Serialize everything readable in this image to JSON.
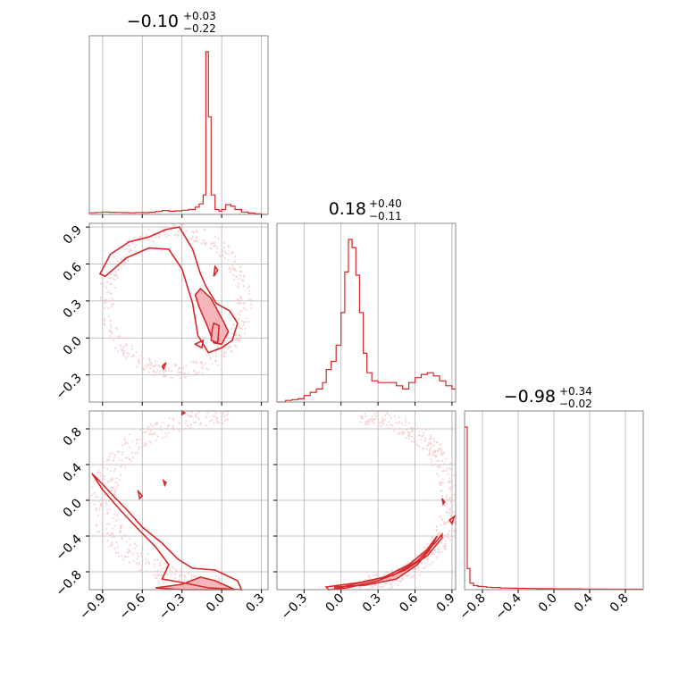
{
  "chart_data": {
    "type": "corner",
    "grid": true,
    "colors": {
      "line": "#d62728",
      "fill": "#f4b6bb",
      "scatter": "#f7c8cc",
      "grid": "#b0b0b0"
    },
    "titles": [
      {
        "median": "−0.10",
        "plus": "+0.03",
        "minus": "−0.22"
      },
      {
        "median": "0.18",
        "plus": "+0.40",
        "minus": "−0.11"
      },
      {
        "median": "−0.98",
        "plus": "+0.34",
        "minus": "−0.02"
      }
    ],
    "params": [
      {
        "range": [
          -1.0,
          0.35
        ],
        "ticks": [
          -0.9,
          -0.6,
          -0.3,
          0.0,
          0.3
        ],
        "tick_labels": [
          "−0.9",
          "−0.6",
          "−0.3",
          "0.0",
          "0.3"
        ]
      },
      {
        "range": [
          -0.52,
          0.93
        ],
        "ticks": [
          -0.3,
          0.0,
          0.3,
          0.6,
          0.9
        ],
        "tick_labels": [
          "−0.3",
          "0.0",
          "0.3",
          "0.6",
          "0.9"
        ]
      },
      {
        "range": [
          -1.0,
          1.0
        ],
        "ticks": [
          -0.8,
          -0.4,
          0.0,
          0.4,
          0.8
        ],
        "tick_labels": [
          "−0.8",
          "−0.4",
          "0.0",
          "0.4",
          "0.8"
        ]
      }
    ],
    "histograms": [
      {
        "param": 0,
        "bins": [
          [
            -1.0,
            0.01
          ],
          [
            -0.95,
            0.012
          ],
          [
            -0.9,
            0.015
          ],
          [
            -0.85,
            0.013
          ],
          [
            -0.8,
            0.012
          ],
          [
            -0.75,
            0.011
          ],
          [
            -0.7,
            0.01
          ],
          [
            -0.65,
            0.012
          ],
          [
            -0.6,
            0.011
          ],
          [
            -0.55,
            0.013
          ],
          [
            -0.5,
            0.018
          ],
          [
            -0.45,
            0.024
          ],
          [
            -0.4,
            0.02
          ],
          [
            -0.35,
            0.022
          ],
          [
            -0.3,
            0.026
          ],
          [
            -0.25,
            0.03
          ],
          [
            -0.2,
            0.045
          ],
          [
            -0.17,
            0.065
          ],
          [
            -0.14,
            0.12
          ],
          [
            -0.12,
            1.0
          ],
          [
            -0.1,
            0.6
          ],
          [
            -0.08,
            0.12
          ],
          [
            -0.05,
            0.03
          ],
          [
            -0.02,
            0.02
          ],
          [
            0.0,
            0.03
          ],
          [
            0.03,
            0.06
          ],
          [
            0.07,
            0.05
          ],
          [
            0.1,
            0.03
          ],
          [
            0.15,
            0.015
          ],
          [
            0.2,
            0.008
          ],
          [
            0.25,
            0.004
          ],
          [
            0.3,
            0.0
          ]
        ]
      },
      {
        "param": 1,
        "bins": [
          [
            -0.52,
            0.0
          ],
          [
            -0.45,
            0.01
          ],
          [
            -0.4,
            0.015
          ],
          [
            -0.35,
            0.02
          ],
          [
            -0.3,
            0.04
          ],
          [
            -0.25,
            0.06
          ],
          [
            -0.2,
            0.08
          ],
          [
            -0.15,
            0.12
          ],
          [
            -0.12,
            0.2
          ],
          [
            -0.08,
            0.25
          ],
          [
            -0.04,
            0.35
          ],
          [
            0.0,
            0.55
          ],
          [
            0.03,
            0.8
          ],
          [
            0.06,
            1.0
          ],
          [
            0.09,
            0.95
          ],
          [
            0.12,
            0.78
          ],
          [
            0.15,
            0.55
          ],
          [
            0.18,
            0.3
          ],
          [
            0.21,
            0.18
          ],
          [
            0.25,
            0.13
          ],
          [
            0.3,
            0.12
          ],
          [
            0.35,
            0.12
          ],
          [
            0.4,
            0.12
          ],
          [
            0.45,
            0.1
          ],
          [
            0.5,
            0.08
          ],
          [
            0.55,
            0.12
          ],
          [
            0.6,
            0.15
          ],
          [
            0.65,
            0.17
          ],
          [
            0.7,
            0.18
          ],
          [
            0.75,
            0.16
          ],
          [
            0.8,
            0.13
          ],
          [
            0.85,
            0.1
          ],
          [
            0.9,
            0.08
          ]
        ]
      },
      {
        "param": 2,
        "bins": [
          [
            -1.0,
            1.0
          ],
          [
            -0.97,
            0.13
          ],
          [
            -0.94,
            0.04
          ],
          [
            -0.9,
            0.025
          ],
          [
            -0.85,
            0.02
          ],
          [
            -0.8,
            0.018
          ],
          [
            -0.75,
            0.015
          ],
          [
            -0.7,
            0.013
          ],
          [
            -0.6,
            0.01
          ],
          [
            -0.5,
            0.009
          ],
          [
            -0.4,
            0.008
          ],
          [
            -0.3,
            0.007
          ],
          [
            -0.2,
            0.006
          ],
          [
            -0.1,
            0.006
          ],
          [
            0.0,
            0.005
          ],
          [
            0.1,
            0.005
          ],
          [
            0.2,
            0.005
          ],
          [
            0.3,
            0.004
          ],
          [
            0.4,
            0.004
          ],
          [
            0.5,
            0.004
          ],
          [
            0.6,
            0.003
          ],
          [
            0.7,
            0.003
          ],
          [
            0.8,
            0.003
          ],
          [
            0.9,
            0.003
          ]
        ]
      }
    ],
    "pairs": [
      {
        "x_param": 0,
        "y_param": 1,
        "filled_regions": [
          [
            [
              -0.16,
              0.4
            ],
            [
              -0.08,
              0.32
            ],
            [
              -0.03,
              0.22
            ],
            [
              0.02,
              0.12
            ],
            [
              0.05,
              0.05
            ],
            [
              0.0,
              -0.05
            ],
            [
              -0.06,
              -0.04
            ],
            [
              -0.11,
              0.1
            ],
            [
              -0.17,
              0.25
            ],
            [
              -0.2,
              0.35
            ]
          ],
          [
            [
              -0.06,
              0.12
            ],
            [
              -0.02,
              0.1
            ],
            [
              -0.03,
              -0.04
            ],
            [
              -0.08,
              -0.02
            ],
            [
              -0.07,
              0.08
            ]
          ]
        ],
        "outer_contours": [
          [
            [
              -0.92,
              0.52
            ],
            [
              -0.84,
              0.68
            ],
            [
              -0.7,
              0.78
            ],
            [
              -0.55,
              0.82
            ],
            [
              -0.42,
              0.88
            ],
            [
              -0.32,
              0.9
            ],
            [
              -0.22,
              0.72
            ],
            [
              -0.16,
              0.52
            ],
            [
              -0.12,
              0.42
            ],
            [
              -0.04,
              0.28
            ],
            [
              0.06,
              0.22
            ],
            [
              0.12,
              0.12
            ],
            [
              0.08,
              -0.02
            ],
            [
              0.0,
              -0.08
            ],
            [
              -0.1,
              -0.12
            ],
            [
              -0.18,
              0.02
            ],
            [
              -0.22,
              0.28
            ],
            [
              -0.3,
              0.56
            ],
            [
              -0.4,
              0.72
            ],
            [
              -0.55,
              0.73
            ],
            [
              -0.72,
              0.65
            ],
            [
              -0.88,
              0.5
            ]
          ],
          [
            [
              -0.2,
              -0.05
            ],
            [
              -0.14,
              -0.02
            ],
            [
              -0.15,
              -0.08
            ]
          ],
          [
            [
              -0.45,
              -0.23
            ],
            [
              -0.42,
              -0.2
            ],
            [
              -0.44,
              -0.25
            ]
          ],
          [
            [
              -0.06,
              0.5
            ],
            [
              -0.03,
              0.55
            ],
            [
              -0.05,
              0.58
            ]
          ]
        ],
        "scatter_pattern": "ring"
      },
      {
        "x_param": 0,
        "y_param": 2,
        "filled_regions": [
          [
            [
              -0.5,
              -0.98
            ],
            [
              -0.3,
              -0.94
            ],
            [
              -0.16,
              -0.86
            ],
            [
              -0.05,
              -0.9
            ],
            [
              0.1,
              -1.0
            ],
            [
              -0.3,
              -1.0
            ]
          ]
        ],
        "outer_contours": [
          [
            [
              -0.98,
              0.3
            ],
            [
              -0.9,
              0.18
            ],
            [
              -0.82,
              0.05
            ],
            [
              -0.72,
              -0.1
            ],
            [
              -0.6,
              -0.3
            ],
            [
              -0.45,
              -0.48
            ],
            [
              -0.33,
              -0.66
            ],
            [
              -0.22,
              -0.76
            ],
            [
              -0.05,
              -0.78
            ],
            [
              0.12,
              -0.9
            ],
            [
              0.15,
              -1.0
            ],
            [
              -0.1,
              -0.98
            ],
            [
              -0.3,
              -0.92
            ],
            [
              -0.45,
              -0.88
            ],
            [
              -0.4,
              -0.72
            ],
            [
              -0.5,
              -0.52
            ],
            [
              -0.62,
              -0.34
            ],
            [
              -0.76,
              -0.12
            ],
            [
              -0.9,
              0.12
            ]
          ],
          [
            [
              -0.44,
              0.22
            ],
            [
              -0.42,
              0.2
            ],
            [
              -0.43,
              0.17
            ]
          ],
          [
            [
              -0.63,
              0.1
            ],
            [
              -0.6,
              0.05
            ],
            [
              -0.62,
              0.02
            ]
          ],
          [
            [
              -0.3,
              1.0
            ],
            [
              -0.28,
              0.98
            ],
            [
              -0.3,
              0.96
            ]
          ]
        ],
        "scatter_pattern": "arc"
      },
      {
        "x_param": 1,
        "y_param": 2,
        "filled_regions": [
          [
            [
              -0.05,
              -0.97
            ],
            [
              0.2,
              -0.95
            ],
            [
              0.45,
              -0.88
            ],
            [
              0.62,
              -0.72
            ],
            [
              0.72,
              -0.55
            ],
            [
              0.78,
              -0.4
            ],
            [
              0.7,
              -0.55
            ],
            [
              0.55,
              -0.72
            ],
            [
              0.35,
              -0.86
            ],
            [
              0.1,
              -0.94
            ],
            [
              -0.05,
              -0.99
            ]
          ]
        ],
        "outer_contours": [
          [
            [
              -0.12,
              -0.97
            ],
            [
              0.15,
              -0.92
            ],
            [
              0.42,
              -0.84
            ],
            [
              0.62,
              -0.68
            ],
            [
              0.76,
              -0.48
            ],
            [
              0.82,
              -0.38
            ],
            [
              0.82,
              -0.42
            ],
            [
              0.7,
              -0.62
            ],
            [
              0.52,
              -0.78
            ],
            [
              0.3,
              -0.9
            ],
            [
              0.05,
              -0.98
            ],
            [
              -0.1,
              -1.0
            ]
          ],
          [
            [
              0.88,
              -0.22
            ],
            [
              0.92,
              -0.18
            ],
            [
              0.9,
              -0.26
            ]
          ],
          [
            [
              0.82,
              0.02
            ],
            [
              0.84,
              -0.02
            ],
            [
              0.83,
              -0.04
            ]
          ]
        ],
        "scatter_pattern": "big-arc"
      }
    ]
  }
}
